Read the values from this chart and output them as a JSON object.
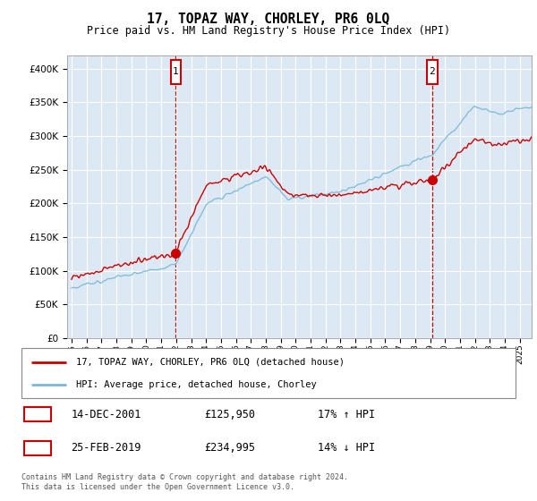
{
  "title": "17, TOPAZ WAY, CHORLEY, PR6 0LQ",
  "subtitle": "Price paid vs. HM Land Registry's House Price Index (HPI)",
  "plot_bg_color": "#dce9f5",
  "ylim": [
    0,
    420000
  ],
  "yticks": [
    0,
    50000,
    100000,
    150000,
    200000,
    250000,
    300000,
    350000,
    400000
  ],
  "xtick_years": [
    1995,
    1996,
    1997,
    1998,
    1999,
    2000,
    2001,
    2002,
    2003,
    2004,
    2005,
    2006,
    2007,
    2008,
    2009,
    2010,
    2011,
    2012,
    2013,
    2014,
    2015,
    2016,
    2017,
    2018,
    2019,
    2020,
    2021,
    2022,
    2023,
    2024,
    2025
  ],
  "legend_line1": "17, TOPAZ WAY, CHORLEY, PR6 0LQ (detached house)",
  "legend_line2": "HPI: Average price, detached house, Chorley",
  "annotation1_label": "1",
  "annotation1_date": "14-DEC-2001",
  "annotation1_price": "£125,950",
  "annotation1_hpi": "17% ↑ HPI",
  "annotation2_label": "2",
  "annotation2_date": "25-FEB-2019",
  "annotation2_price": "£234,995",
  "annotation2_hpi": "14% ↓ HPI",
  "footer": "Contains HM Land Registry data © Crown copyright and database right 2024.\nThis data is licensed under the Open Government Licence v3.0.",
  "sale1_year": 2001.96,
  "sale1_price": 125950,
  "sale2_year": 2019.15,
  "sale2_price": 234995,
  "hpi_line_color": "#7bb8d8",
  "price_line_color": "#cc0000",
  "vline_color": "#cc0000",
  "annotation_box_color": "#cc0000",
  "xmin": 1994.7,
  "xmax": 2025.8
}
